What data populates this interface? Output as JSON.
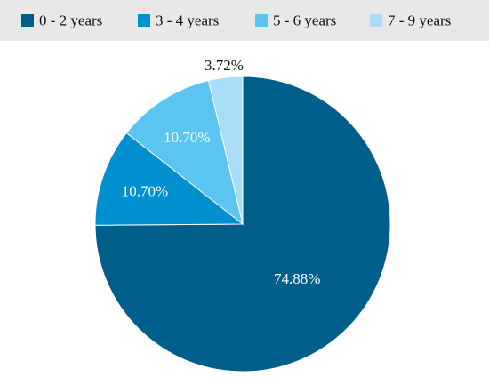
{
  "chart_data": {
    "type": "pie",
    "title": "",
    "legend_position": "top",
    "start_angle_deg": 0,
    "direction": "clockwise",
    "slices": [
      {
        "label": "0 - 2 years",
        "value": 74.88,
        "value_label": "74.88%",
        "color": "#005f8a",
        "label_color": "#ffffff"
      },
      {
        "label": "3 - 4 years",
        "value": 10.7,
        "value_label": "10.70%",
        "color": "#0090d0",
        "label_color": "#ffffff"
      },
      {
        "label": "5 - 6 years",
        "value": 10.7,
        "value_label": "10.70%",
        "color": "#5bc4f1",
        "label_color": "#ffffff"
      },
      {
        "label": "7 - 9 years",
        "value": 3.72,
        "value_label": "3.72%",
        "color": "#a8dcf7",
        "label_color": "#222222"
      }
    ]
  },
  "colors": {
    "legend_background": "#e8e8e8",
    "legend_text": "#111111",
    "slice_border": "#ffffff"
  }
}
